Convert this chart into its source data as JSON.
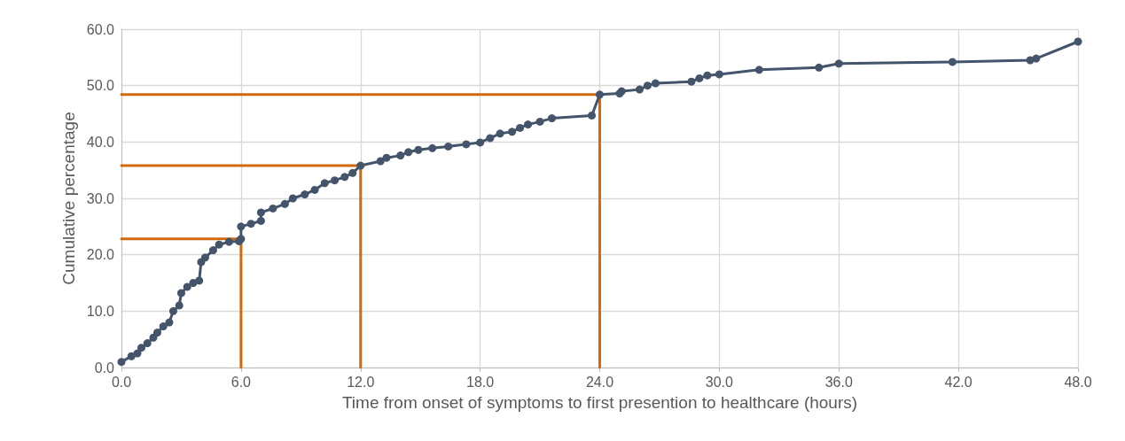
{
  "chart_data": {
    "type": "line",
    "xlabel": "Time from onset of symptoms to first presention to healthcare (hours)",
    "ylabel": "Cumulative percentage",
    "xlim": [
      0,
      48
    ],
    "xticks": [
      {
        "value": 0,
        "label": "0.0"
      },
      {
        "value": 6,
        "label": "6.0"
      },
      {
        "value": 12,
        "label": "12.0"
      },
      {
        "value": 18,
        "label": "18.0"
      },
      {
        "value": 24,
        "label": "24.0"
      },
      {
        "value": 30,
        "label": "30.0"
      },
      {
        "value": 36,
        "label": "36.0"
      },
      {
        "value": 42,
        "label": "42.0"
      },
      {
        "value": 48,
        "label": "48.0"
      }
    ],
    "ylim": [
      0,
      60
    ],
    "yticks": [
      {
        "value": 0,
        "label": "0.0"
      },
      {
        "value": 10,
        "label": "10.0"
      },
      {
        "value": 20,
        "label": "20.0"
      },
      {
        "value": 30,
        "label": "30.0"
      },
      {
        "value": 40,
        "label": "40.0"
      },
      {
        "value": 50,
        "label": "50.0"
      },
      {
        "value": 60,
        "label": "60.0"
      }
    ],
    "grid": true,
    "series": [
      {
        "color": "#44546a",
        "marker": "circle",
        "line_style": "solid",
        "x": [
          0,
          0.5,
          0.8,
          1.0,
          1.3,
          1.6,
          1.8,
          2.1,
          2.4,
          2.6,
          2.9,
          3.0,
          3.3,
          3.6,
          3.9,
          4.0,
          4.2,
          4.6,
          4.9,
          5.4,
          5.9,
          6.0,
          6.0,
          6.5,
          7.0,
          7.0,
          7.6,
          8.2,
          8.6,
          9.2,
          9.7,
          10.2,
          10.7,
          11.2,
          11.6,
          12.0,
          13.0,
          13.3,
          14.0,
          14.4,
          14.9,
          15.6,
          16.4,
          17.3,
          18.0,
          18.5,
          19.0,
          19.6,
          20.0,
          20.4,
          21.0,
          21.6,
          23.6,
          24.0,
          25.0,
          25.1,
          26.0,
          26.4,
          26.8,
          28.6,
          29.0,
          29.4,
          30.0,
          32.0,
          35.0,
          36.0,
          41.7,
          45.6,
          45.9,
          48.0
        ],
        "values": [
          1.0,
          2.0,
          2.5,
          3.5,
          4.3,
          5.3,
          6.2,
          7.3,
          8.0,
          10.0,
          11.0,
          13.2,
          14.3,
          15.0,
          15.4,
          18.7,
          19.5,
          20.8,
          21.8,
          22.3,
          22.4,
          22.8,
          25.0,
          25.5,
          26.0,
          27.5,
          28.2,
          29.0,
          30.0,
          30.7,
          31.5,
          32.7,
          33.2,
          33.8,
          34.5,
          35.8,
          36.6,
          37.2,
          37.6,
          38.2,
          38.6,
          38.9,
          39.2,
          39.6,
          39.9,
          40.7,
          41.5,
          41.8,
          42.5,
          43.1,
          43.6,
          44.2,
          44.7,
          48.4,
          48.6,
          49.0,
          49.3,
          50.0,
          50.4,
          50.7,
          51.3,
          51.8,
          52.0,
          52.8,
          53.2,
          53.9,
          54.2,
          54.5,
          54.8,
          57.8
        ]
      },
      {
        "color": "#d06a0c",
        "marker": "none",
        "line_style": "solid",
        "x": [
          0,
          6,
          6
        ],
        "values": [
          22.8,
          22.8,
          0
        ]
      },
      {
        "color": "#d06a0c",
        "marker": "none",
        "line_style": "solid",
        "x": [
          0,
          12,
          12
        ],
        "values": [
          35.8,
          35.8,
          0
        ]
      },
      {
        "color": "#d06a0c",
        "marker": "none",
        "line_style": "solid",
        "x": [
          0,
          24,
          24
        ],
        "values": [
          48.4,
          48.4,
          0
        ]
      }
    ]
  }
}
